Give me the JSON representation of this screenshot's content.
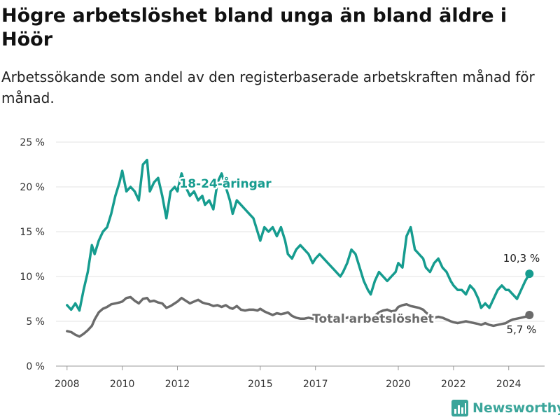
{
  "title": "Högre arbetslöshet bland unga än bland äldre i Höör",
  "subtitle": "Arbetssökande som andel av den registerbaserade arbetskraften månad för månad.",
  "brand": {
    "name": "Newsworthy",
    "icon": "bar-chart-logo-icon",
    "color": "#3aa59a"
  },
  "chart_data": {
    "type": "line",
    "ylim": [
      0,
      25
    ],
    "xlim": [
      2007.6,
      2025.3
    ],
    "y_ticks": [
      {
        "value": 0,
        "label": "0 %"
      },
      {
        "value": 5,
        "label": "5 %"
      },
      {
        "value": 10,
        "label": "10 %"
      },
      {
        "value": 15,
        "label": "15 %"
      },
      {
        "value": 20,
        "label": "20 %"
      },
      {
        "value": 25,
        "label": "25 %"
      }
    ],
    "x_ticks": [
      {
        "value": 2008,
        "label": "2008"
      },
      {
        "value": 2010,
        "label": "2010"
      },
      {
        "value": 2012,
        "label": "2012"
      },
      {
        "value": 2015,
        "label": "2015"
      },
      {
        "value": 2017,
        "label": "2017"
      },
      {
        "value": 2020,
        "label": "2020"
      },
      {
        "value": 2022,
        "label": "2022"
      },
      {
        "value": 2024,
        "label": "2024"
      }
    ],
    "grid": "horizontal",
    "legend": "inline labels",
    "series": [
      {
        "name": "18-24-åringar",
        "color": "#169c8f",
        "end_label": "10,3 %",
        "x": [
          2008.0,
          2008.15,
          2008.3,
          2008.45,
          2008.6,
          2008.75,
          2008.9,
          2009.0,
          2009.15,
          2009.3,
          2009.45,
          2009.6,
          2009.75,
          2009.9,
          2010.0,
          2010.15,
          2010.3,
          2010.45,
          2010.6,
          2010.75,
          2010.9,
          2011.0,
          2011.15,
          2011.3,
          2011.45,
          2011.6,
          2011.75,
          2011.9,
          2012.0,
          2012.15,
          2012.3,
          2012.45,
          2012.6,
          2012.75,
          2012.9,
          2013.0,
          2013.15,
          2013.3,
          2013.45,
          2013.6,
          2013.75,
          2013.9,
          2014.0,
          2014.15,
          2014.3,
          2014.45,
          2014.6,
          2014.75,
          2014.9,
          2015.0,
          2015.15,
          2015.3,
          2015.45,
          2015.6,
          2015.75,
          2015.9,
          2016.0,
          2016.15,
          2016.3,
          2016.45,
          2016.6,
          2016.75,
          2016.9,
          2017.0,
          2017.15,
          2017.3,
          2017.45,
          2017.6,
          2017.75,
          2017.9,
          2018.0,
          2018.15,
          2018.3,
          2018.45,
          2018.6,
          2018.75,
          2018.9,
          2019.0,
          2019.15,
          2019.3,
          2019.45,
          2019.6,
          2019.75,
          2019.9,
          2020.0,
          2020.15,
          2020.3,
          2020.45,
          2020.6,
          2020.75,
          2020.9,
          2021.0,
          2021.15,
          2021.3,
          2021.45,
          2021.6,
          2021.75,
          2021.9,
          2022.0,
          2022.15,
          2022.3,
          2022.45,
          2022.6,
          2022.75,
          2022.9,
          2023.0,
          2023.15,
          2023.3,
          2023.45,
          2023.6,
          2023.75,
          2023.9,
          2024.0,
          2024.15,
          2024.3,
          2024.45,
          2024.6,
          2024.75
        ],
        "values": [
          6.8,
          6.3,
          7.0,
          6.2,
          8.5,
          10.5,
          13.5,
          12.5,
          14.0,
          15.0,
          15.5,
          17.0,
          19.0,
          20.5,
          21.8,
          19.5,
          20.0,
          19.5,
          18.5,
          22.5,
          23.0,
          19.5,
          20.5,
          21.0,
          19.0,
          16.5,
          19.5,
          20.0,
          19.5,
          21.5,
          20.0,
          19.0,
          19.5,
          18.5,
          19.0,
          18.0,
          18.5,
          17.5,
          20.5,
          21.5,
          20.0,
          18.5,
          17.0,
          18.5,
          18.0,
          17.5,
          17.0,
          16.5,
          15.0,
          14.0,
          15.5,
          15.0,
          15.5,
          14.5,
          15.5,
          14.0,
          12.5,
          12.0,
          13.0,
          13.5,
          13.0,
          12.5,
          11.5,
          12.0,
          12.5,
          12.0,
          11.5,
          11.0,
          10.5,
          10.0,
          10.5,
          11.5,
          13.0,
          12.5,
          11.0,
          9.5,
          8.5,
          8.0,
          9.5,
          10.5,
          10.0,
          9.5,
          10.0,
          10.5,
          11.5,
          11.0,
          14.5,
          15.5,
          13.0,
          12.5,
          12.0,
          11.0,
          10.5,
          11.5,
          12.0,
          11.0,
          10.5,
          9.5,
          9.0,
          8.5,
          8.5,
          8.0,
          9.0,
          8.5,
          7.5,
          6.5,
          7.0,
          6.5,
          7.5,
          8.5,
          9.0,
          8.5,
          8.5,
          8.0,
          7.5,
          8.5,
          9.5,
          10.3
        ]
      },
      {
        "name": "Total arbetslöshet",
        "color": "#6b6b6b",
        "end_label": "5,7 %",
        "x": [
          2008.0,
          2008.15,
          2008.3,
          2008.45,
          2008.6,
          2008.75,
          2008.9,
          2009.0,
          2009.15,
          2009.3,
          2009.45,
          2009.6,
          2009.75,
          2009.9,
          2010.0,
          2010.15,
          2010.3,
          2010.45,
          2010.6,
          2010.75,
          2010.9,
          2011.0,
          2011.15,
          2011.3,
          2011.45,
          2011.6,
          2011.75,
          2011.9,
          2012.0,
          2012.15,
          2012.3,
          2012.45,
          2012.6,
          2012.75,
          2012.9,
          2013.0,
          2013.15,
          2013.3,
          2013.45,
          2013.6,
          2013.75,
          2013.9,
          2014.0,
          2014.15,
          2014.3,
          2014.45,
          2014.6,
          2014.75,
          2014.9,
          2015.0,
          2015.15,
          2015.3,
          2015.45,
          2015.6,
          2015.75,
          2015.9,
          2016.0,
          2016.15,
          2016.3,
          2016.45,
          2016.6,
          2016.75,
          2016.9,
          2017.0,
          2017.15,
          2017.3,
          2017.45,
          2017.6,
          2017.75,
          2017.9,
          2018.0,
          2018.15,
          2018.3,
          2018.45,
          2018.6,
          2018.75,
          2018.9,
          2019.0,
          2019.15,
          2019.3,
          2019.45,
          2019.6,
          2019.75,
          2019.9,
          2020.0,
          2020.15,
          2020.3,
          2020.45,
          2020.6,
          2020.75,
          2020.9,
          2021.0,
          2021.15,
          2021.3,
          2021.45,
          2021.6,
          2021.75,
          2021.9,
          2022.0,
          2022.15,
          2022.3,
          2022.45,
          2022.6,
          2022.75,
          2022.9,
          2023.0,
          2023.15,
          2023.3,
          2023.45,
          2023.6,
          2023.75,
          2023.9,
          2024.0,
          2024.15,
          2024.3,
          2024.45,
          2024.6,
          2024.75
        ],
        "values": [
          3.9,
          3.8,
          3.5,
          3.3,
          3.6,
          4.0,
          4.5,
          5.2,
          6.0,
          6.4,
          6.6,
          6.9,
          7.0,
          7.1,
          7.2,
          7.6,
          7.7,
          7.3,
          7.0,
          7.5,
          7.6,
          7.2,
          7.3,
          7.1,
          7.0,
          6.5,
          6.7,
          7.0,
          7.2,
          7.6,
          7.3,
          7.0,
          7.2,
          7.4,
          7.1,
          7.0,
          6.9,
          6.7,
          6.8,
          6.6,
          6.8,
          6.5,
          6.4,
          6.7,
          6.3,
          6.2,
          6.3,
          6.3,
          6.2,
          6.4,
          6.1,
          5.9,
          5.7,
          5.9,
          5.8,
          5.9,
          6.0,
          5.6,
          5.4,
          5.3,
          5.3,
          5.4,
          5.3,
          5.2,
          5.3,
          5.1,
          5.2,
          5.1,
          5.3,
          5.2,
          5.3,
          5.4,
          5.6,
          5.5,
          5.3,
          5.4,
          5.2,
          5.3,
          5.6,
          6.0,
          6.2,
          6.3,
          6.1,
          6.2,
          6.6,
          6.8,
          6.9,
          6.7,
          6.6,
          6.5,
          6.3,
          6.0,
          5.6,
          5.4,
          5.5,
          5.4,
          5.2,
          5.0,
          4.9,
          4.8,
          4.9,
          5.0,
          4.9,
          4.8,
          4.7,
          4.6,
          4.8,
          4.6,
          4.5,
          4.6,
          4.7,
          4.8,
          5.0,
          5.2,
          5.3,
          5.4,
          5.5,
          5.7
        ]
      }
    ]
  }
}
